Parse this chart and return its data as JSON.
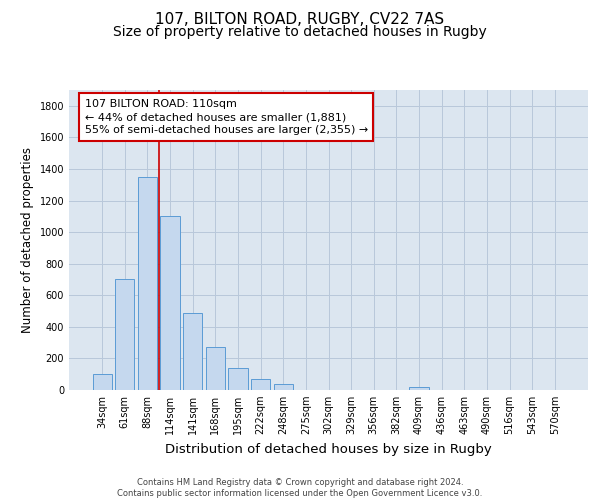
{
  "title1": "107, BILTON ROAD, RUGBY, CV22 7AS",
  "title2": "Size of property relative to detached houses in Rugby",
  "xlabel": "Distribution of detached houses by size in Rugby",
  "ylabel": "Number of detached properties",
  "categories": [
    "34sqm",
    "61sqm",
    "88sqm",
    "114sqm",
    "141sqm",
    "168sqm",
    "195sqm",
    "222sqm",
    "248sqm",
    "275sqm",
    "302sqm",
    "329sqm",
    "356sqm",
    "382sqm",
    "409sqm",
    "436sqm",
    "463sqm",
    "490sqm",
    "516sqm",
    "543sqm",
    "570sqm"
  ],
  "values": [
    100,
    700,
    1350,
    1100,
    490,
    275,
    140,
    70,
    35,
    0,
    0,
    0,
    0,
    0,
    20,
    0,
    0,
    0,
    0,
    0,
    0
  ],
  "bar_color": "#c5d8ee",
  "bar_edge_color": "#5b9bd5",
  "grid_color": "#b8c8da",
  "background_color": "#dce6f0",
  "vline_color": "#cc0000",
  "vline_pos": 2.5,
  "annotation_text": "107 BILTON ROAD: 110sqm\n← 44% of detached houses are smaller (1,881)\n55% of semi-detached houses are larger (2,355) →",
  "annotation_box_color": "#cc0000",
  "ylim": [
    0,
    1900
  ],
  "yticks": [
    0,
    200,
    400,
    600,
    800,
    1000,
    1200,
    1400,
    1600,
    1800
  ],
  "footer1": "Contains HM Land Registry data © Crown copyright and database right 2024.",
  "footer2": "Contains public sector information licensed under the Open Government Licence v3.0.",
  "title_fontsize": 11,
  "subtitle_fontsize": 10,
  "tick_fontsize": 7,
  "ylabel_fontsize": 8.5,
  "xlabel_fontsize": 9.5,
  "footer_fontsize": 6,
  "annot_fontsize": 8
}
